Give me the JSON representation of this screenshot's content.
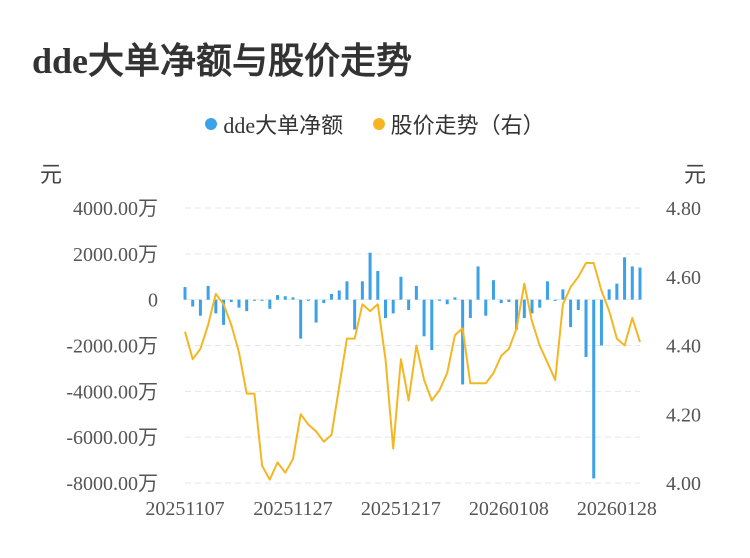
{
  "title": "dde大单净额与股价走势",
  "legend": [
    {
      "label": "dde大单净额",
      "color": "#3ba1e8"
    },
    {
      "label": "股价走势（右）",
      "color": "#f5b623"
    }
  ],
  "units": {
    "left": "元",
    "right": "元"
  },
  "chart_data": {
    "type": "bar+line",
    "categories": [
      "20251107",
      "20251110",
      "20251111",
      "20251112",
      "20251113",
      "20251114",
      "20251117",
      "20251118",
      "20251119",
      "20251120",
      "20251121",
      "20251124",
      "20251125",
      "20251126",
      "20251127",
      "20251128",
      "20251201",
      "20251202",
      "20251203",
      "20251204",
      "20251205",
      "20251208",
      "20251209",
      "20251210",
      "20251211",
      "20251212",
      "20251215",
      "20251216",
      "20251217",
      "20251218",
      "20251219",
      "20251222",
      "20251223",
      "20251224",
      "20251225",
      "20251226",
      "20251229",
      "20251230",
      "20251231",
      "20260102",
      "20260105",
      "20260106",
      "20260107",
      "20260108",
      "20260109",
      "20260112",
      "20260113",
      "20260114",
      "20260115",
      "20260116",
      "20260119",
      "20260120",
      "20260121",
      "20260122",
      "20260123",
      "20260126",
      "20260127",
      "20260128",
      "20260129",
      "20260130"
    ],
    "x_tick_labels": [
      "20251107",
      "20251127",
      "20251217",
      "20260108",
      "20260128"
    ],
    "x_tick_index": [
      0,
      14,
      28,
      42,
      56
    ],
    "series": [
      {
        "name": "dde大单净额",
        "type": "bar",
        "axis": "left",
        "color": "#3ba1e8",
        "values": [
          550,
          -300,
          -700,
          600,
          -600,
          -1100,
          -100,
          -350,
          -500,
          -50,
          -50,
          -400,
          200,
          150,
          100,
          -1700,
          -50,
          -1000,
          -150,
          250,
          400,
          800,
          -1300,
          800,
          2050,
          1250,
          -800,
          -600,
          1000,
          -450,
          600,
          -1600,
          -2200,
          -50,
          -200,
          100,
          -3700,
          -800,
          1450,
          -700,
          850,
          -150,
          -100,
          -1300,
          -800,
          -600,
          -350,
          800,
          -50,
          450,
          -1200,
          -450,
          -2500,
          -7800,
          -2000,
          450,
          700,
          1850,
          1450,
          1400
        ]
      },
      {
        "name": "股价走势（右）",
        "type": "line",
        "axis": "right",
        "color": "#f5b623",
        "values": [
          4.44,
          4.36,
          4.39,
          4.46,
          4.55,
          4.52,
          4.46,
          4.38,
          4.26,
          4.26,
          4.05,
          4.01,
          4.06,
          4.03,
          4.07,
          4.2,
          4.17,
          4.15,
          4.12,
          4.14,
          4.28,
          4.42,
          4.42,
          4.52,
          4.5,
          4.52,
          4.36,
          4.1,
          4.36,
          4.24,
          4.4,
          4.3,
          4.24,
          4.27,
          4.32,
          4.43,
          4.45,
          4.29,
          4.29,
          4.29,
          4.32,
          4.37,
          4.39,
          4.45,
          4.58,
          4.47,
          4.4,
          4.35,
          4.3,
          4.52,
          4.57,
          4.6,
          4.64,
          4.64,
          4.56,
          4.5,
          4.42,
          4.4,
          4.48,
          4.41
        ]
      }
    ],
    "y_left": {
      "ticks": [
        4000,
        2000,
        0,
        -2000,
        -4000,
        -6000,
        -8000
      ],
      "tick_labels": [
        "4000.00万",
        "2000.00万",
        "0",
        "-2000.00万",
        "-4000.00万",
        "-6000.00万",
        "-8000.00万"
      ],
      "range": [
        -8000,
        4000
      ],
      "unit": "万元"
    },
    "y_right": {
      "ticks": [
        4.8,
        4.6,
        4.4,
        4.2,
        4.0
      ],
      "tick_labels": [
        "4.80",
        "4.60",
        "4.40",
        "4.20",
        "4.00"
      ],
      "range": [
        4.0,
        4.8
      ]
    },
    "grid": true,
    "legend_position": "top-center"
  }
}
